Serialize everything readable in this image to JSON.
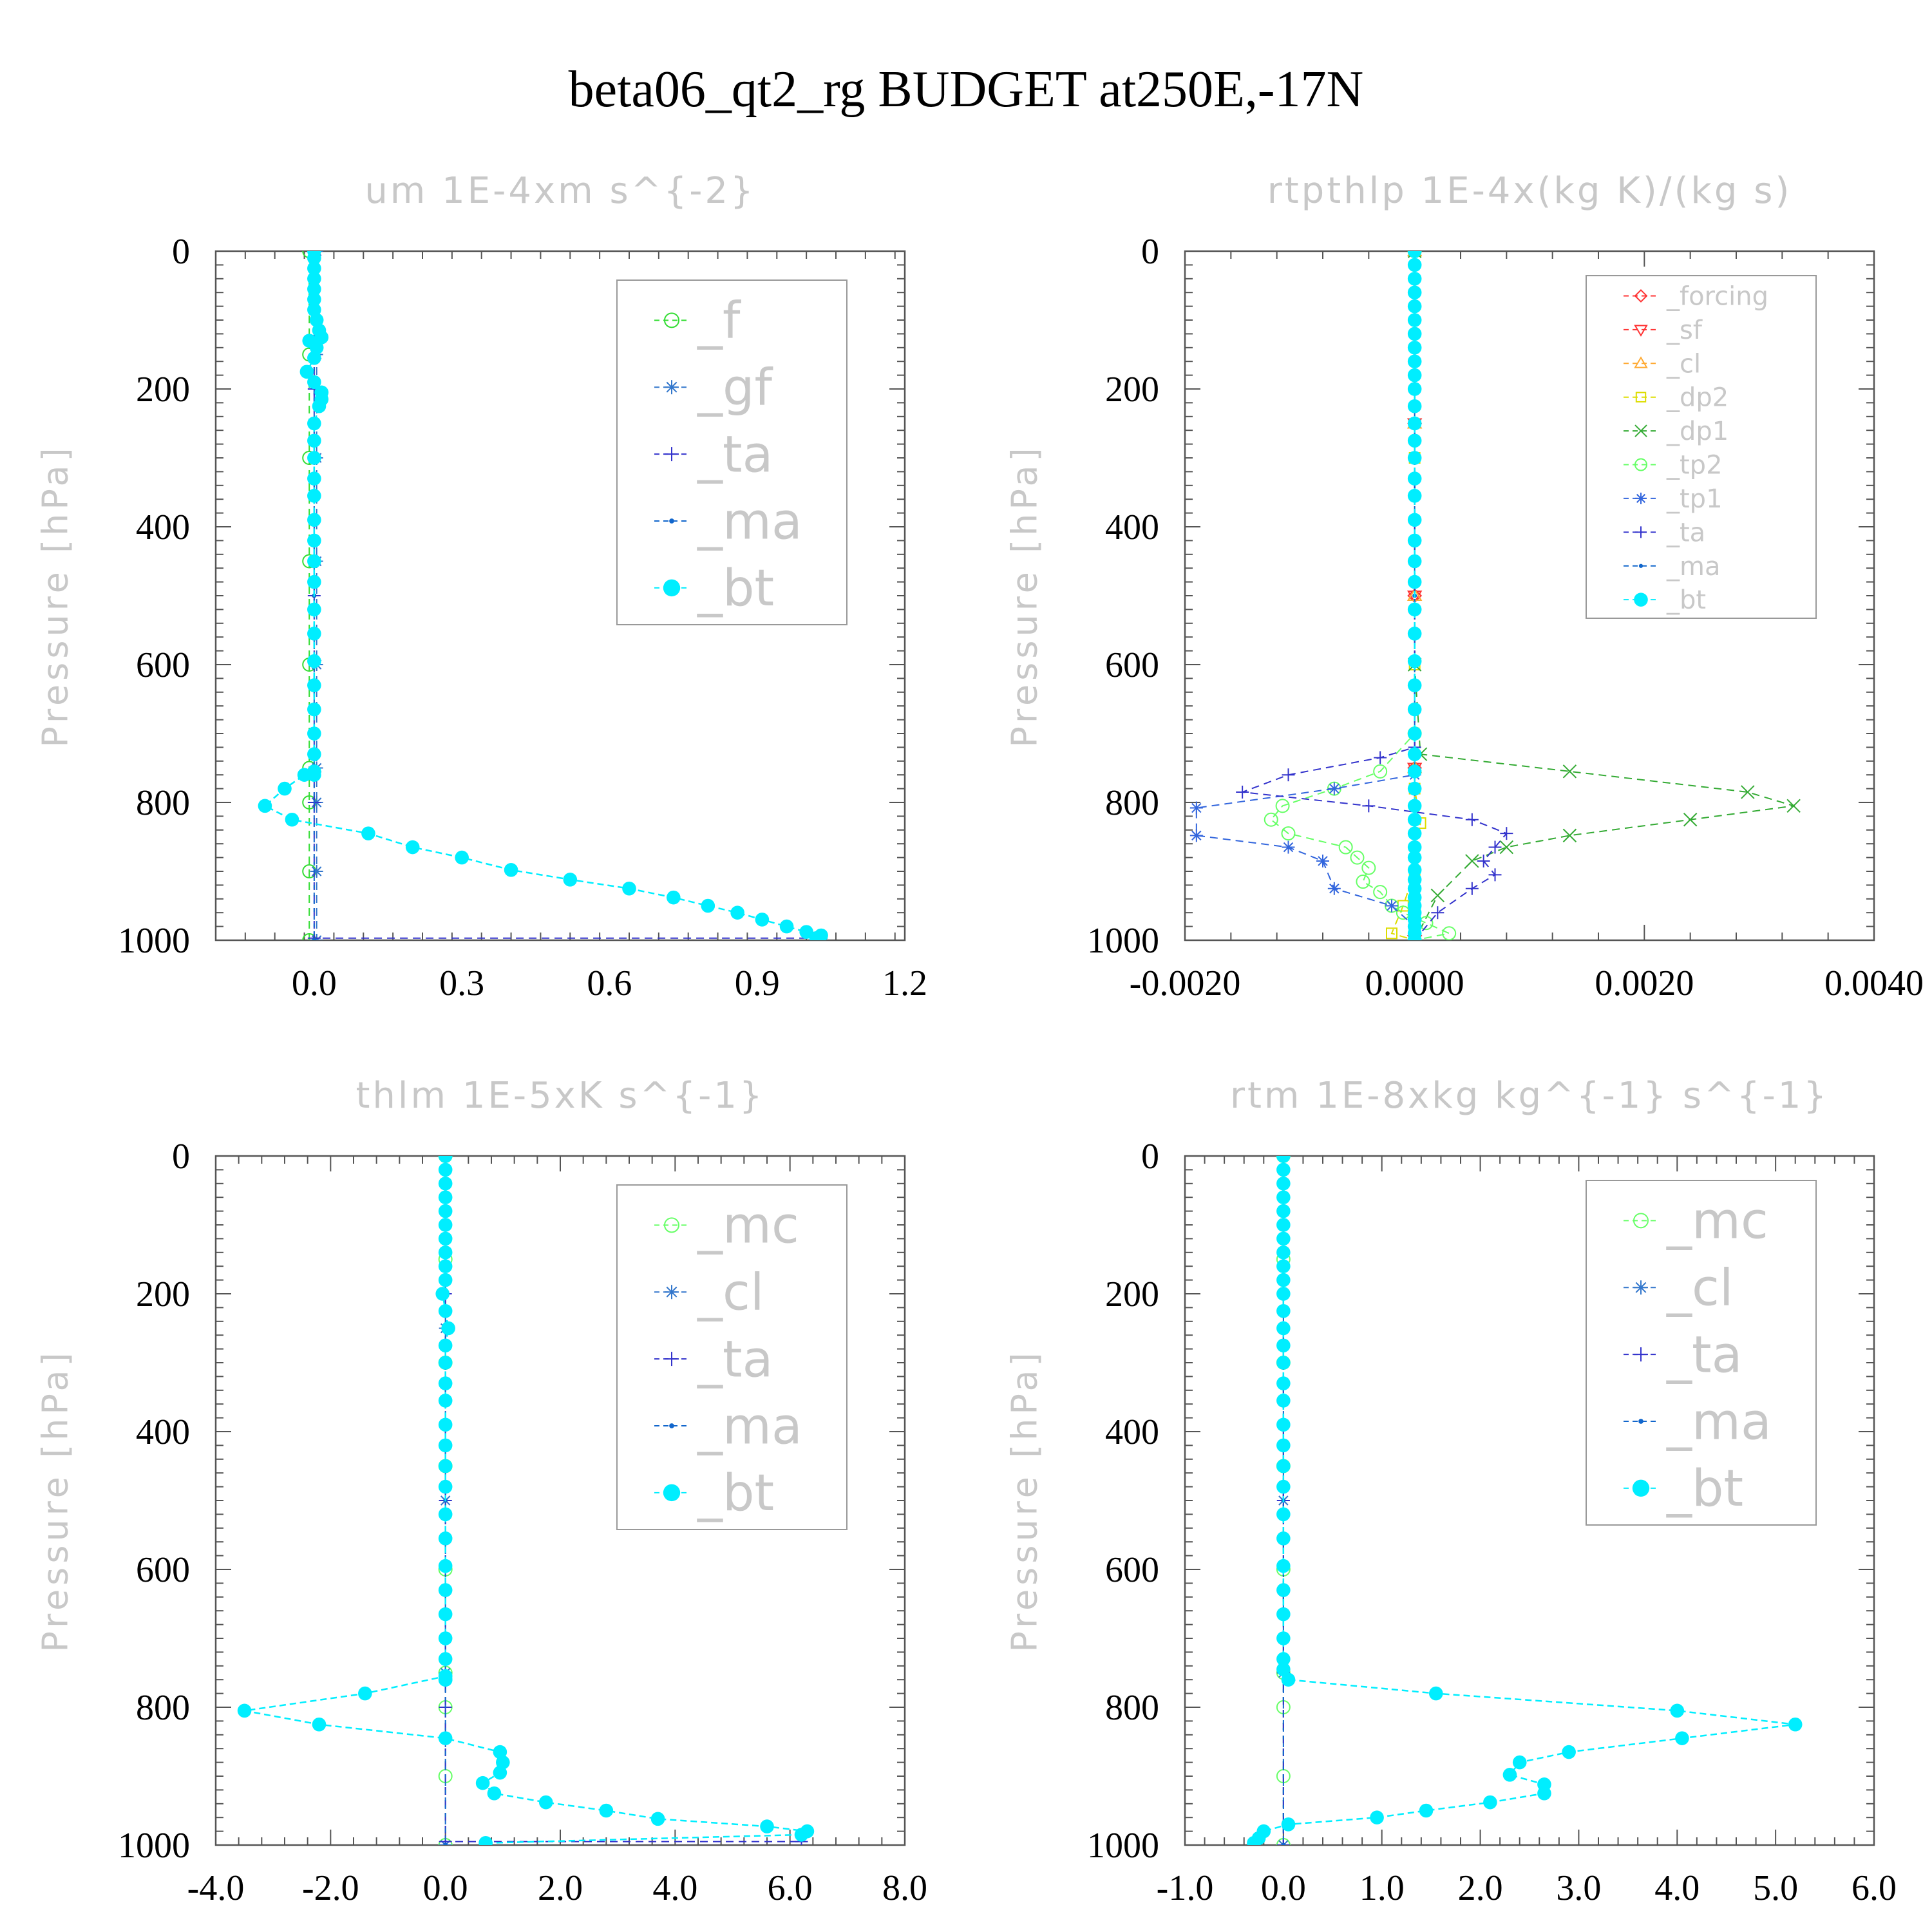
{
  "figure_title": "beta06_qt2_rg  BUDGET at250E,-17N",
  "chart_data": [
    {
      "type": "line",
      "title": "um   1E-4xm s^{-2}",
      "ylabel": "Pressure [hPa]",
      "xlim": [
        -0.2,
        1.2
      ],
      "ylim": [
        1000,
        0
      ],
      "xticks": [
        "0.0",
        "0.3",
        "0.6",
        "0.9",
        "1.2"
      ],
      "xtick_values": [
        0.0,
        0.3,
        0.6,
        0.9,
        1.2
      ],
      "yticks": [
        "0",
        "200",
        "400",
        "600",
        "800",
        "1000"
      ],
      "ytick_values": [
        0,
        200,
        400,
        600,
        800,
        1000
      ],
      "legend_position": "top-right",
      "series": [
        {
          "name": "_f",
          "color": "#33dd33",
          "marker": "circle",
          "x": [
            -0.01,
            -0.01,
            -0.01,
            -0.01,
            -0.01,
            -0.01,
            -0.01,
            -0.01,
            -0.01
          ],
          "y": [
            0,
            150,
            300,
            450,
            600,
            750,
            800,
            900,
            1000
          ]
        },
        {
          "name": "_gf",
          "color": "#3377cc",
          "marker": "star",
          "x": [
            0.005,
            0.005,
            0.005,
            0.005,
            0.005,
            0.005,
            0.005,
            0.005,
            0.005
          ],
          "y": [
            0,
            150,
            300,
            450,
            600,
            750,
            800,
            900,
            1000
          ]
        },
        {
          "name": "_ta",
          "color": "#3333cc",
          "marker": "plus",
          "x": [
            0.0,
            0.0,
            0.0,
            0.0,
            0.0,
            1.03
          ],
          "y": [
            0,
            200,
            500,
            800,
            997,
            997
          ]
        },
        {
          "name": "_ma",
          "color": "#1166cc",
          "marker": "dot",
          "x": [
            0.0,
            0.0,
            0.0,
            0.0,
            0.0
          ],
          "y": [
            0,
            250,
            500,
            750,
            1000
          ]
        },
        {
          "name": "_bt",
          "color": "#00eeff",
          "marker": "filled-circle",
          "x": [
            0.0,
            0.0,
            0.0,
            0.0,
            0.0,
            0.0,
            0.0,
            0.005,
            0.01,
            0.015,
            -0.01,
            0.005,
            0.0,
            -0.015,
            0.0,
            0.015,
            0.015,
            0.01,
            0.0,
            0.0,
            0.0,
            0.0,
            0.0,
            0.0,
            0.0,
            0.0,
            0.0,
            0.0,
            0.0,
            0.0,
            0.0,
            0.0,
            0.0,
            0.0,
            0.0,
            0.0,
            -0.02,
            -0.06,
            -0.1,
            -0.045,
            0.11,
            0.2,
            0.3,
            0.4,
            0.52,
            0.64,
            0.73,
            0.8,
            0.86,
            0.91,
            0.96,
            1.0,
            1.03,
            1.02
          ],
          "y": [
            0,
            10,
            25,
            40,
            55,
            70,
            85,
            100,
            115,
            125,
            130,
            140,
            155,
            175,
            190,
            205,
            215,
            225,
            250,
            275,
            300,
            330,
            355,
            390,
            420,
            450,
            480,
            520,
            555,
            595,
            630,
            665,
            700,
            730,
            755,
            760,
            760,
            780,
            805,
            825,
            845,
            865,
            880,
            898,
            912,
            925,
            938,
            950,
            960,
            970,
            980,
            988,
            993,
            997
          ]
        }
      ]
    },
    {
      "type": "line",
      "title": "rtpthlp   1E-4x(kg K)/(kg s)",
      "ylabel": "Pressure [hPa]",
      "xlim": [
        -0.002,
        0.004
      ],
      "ylim": [
        1000,
        0
      ],
      "xticks": [
        "-0.0020",
        "0.0000",
        "0.0020",
        "0.0040"
      ],
      "xtick_values": [
        -0.002,
        0.0,
        0.002,
        0.004
      ],
      "yticks": [
        "0",
        "200",
        "400",
        "600",
        "800",
        "1000"
      ],
      "ytick_values": [
        0,
        200,
        400,
        600,
        800,
        1000
      ],
      "legend_position": "top-right",
      "series": [
        {
          "name": "_forcing",
          "color": "#ff3333",
          "marker": "diamond",
          "x": [
            0.0,
            0.0,
            0.0,
            0.0,
            0.0
          ],
          "y": [
            0,
            250,
            500,
            750,
            1000
          ]
        },
        {
          "name": "_sf",
          "color": "#ff3333",
          "marker": "triangle-down",
          "x": [
            0.0,
            0.0,
            0.0,
            0.0,
            0.0
          ],
          "y": [
            0,
            250,
            500,
            750,
            1000
          ]
        },
        {
          "name": "_cl",
          "color": "#ffaa33",
          "marker": "triangle-up",
          "x": [
            0.0,
            0.0,
            0.0,
            0.0,
            0.0
          ],
          "y": [
            0,
            250,
            500,
            750,
            1000
          ]
        },
        {
          "name": "_dp2",
          "color": "#dddd00",
          "marker": "square",
          "x": [
            0.0,
            0.0,
            0.0,
            0.0,
            5e-05,
            0.0,
            -0.0001,
            -0.0002,
            0.0
          ],
          "y": [
            0,
            300,
            600,
            780,
            830,
            900,
            950,
            990,
            1000
          ]
        },
        {
          "name": "_dp1",
          "color": "#33aa33",
          "marker": "cross",
          "x": [
            0.0,
            0.0,
            5e-05,
            0.00135,
            0.0029,
            0.0033,
            0.0024,
            0.00135,
            0.0008,
            0.0005,
            0.0002,
            0.0
          ],
          "y": [
            0,
            600,
            730,
            755,
            785,
            805,
            825,
            848,
            865,
            885,
            935,
            1000
          ]
        },
        {
          "name": "_tp2",
          "color": "#66ff66",
          "marker": "circle",
          "x": [
            0.0,
            0.0,
            -0.0003,
            -0.0007,
            -0.00115,
            -0.00125,
            -0.0011,
            -0.0006,
            -0.0005,
            -0.0004,
            -0.00045,
            -0.0003,
            -0.0002,
            -0.0001,
            0.0001,
            0.0003,
            0.0
          ],
          "y": [
            0,
            700,
            755,
            780,
            805,
            825,
            845,
            865,
            880,
            895,
            915,
            930,
            950,
            960,
            975,
            990,
            1000
          ]
        },
        {
          "name": "_tp1",
          "color": "#3366dd",
          "marker": "star",
          "x": [
            0.0,
            0.0,
            -0.0007,
            -0.0019,
            -0.0019,
            -0.0011,
            -0.0008,
            -0.0007,
            -0.0002,
            0.0,
            0.0
          ],
          "y": [
            0,
            760,
            780,
            808,
            848,
            865,
            885,
            925,
            950,
            980,
            1000
          ]
        },
        {
          "name": "_ta",
          "color": "#3333cc",
          "marker": "plus",
          "x": [
            0.0,
            0.0,
            -0.0003,
            -0.0011,
            -0.0015,
            -0.0004,
            0.0005,
            0.0008,
            0.0007,
            0.0006,
            0.0007,
            0.0005,
            0.0002,
            0.0
          ],
          "y": [
            0,
            720,
            735,
            760,
            785,
            805,
            825,
            845,
            865,
            885,
            905,
            925,
            960,
            1000
          ]
        },
        {
          "name": "_ma",
          "color": "#1166cc",
          "marker": "dot",
          "x": [
            0.0,
            0.0,
            0.0,
            0.0,
            0.0
          ],
          "y": [
            0,
            250,
            500,
            750,
            1000
          ]
        },
        {
          "name": "_bt",
          "color": "#00eeff",
          "marker": "filled-circle",
          "x": [
            0.0,
            0.0,
            0.0,
            0.0,
            0.0,
            0.0,
            0.0,
            0.0,
            0.0,
            0.0,
            0.0,
            0.0,
            0.0,
            0.0,
            0.0,
            0.0,
            0.0,
            0.0,
            0.0,
            0.0,
            0.0,
            0.0,
            0.0,
            0.0,
            0.0,
            0.0,
            0.0,
            0.0,
            0.0,
            0.0,
            0.0,
            0.0,
            0.0,
            0.0,
            0.0,
            0.0,
            0.0,
            0.0,
            0.0,
            0.0,
            0.0,
            0.0,
            0.0,
            0.0,
            0.0
          ],
          "y": [
            0,
            20,
            40,
            60,
            80,
            100,
            120,
            140,
            160,
            180,
            200,
            225,
            250,
            275,
            300,
            330,
            355,
            390,
            420,
            450,
            480,
            520,
            555,
            595,
            630,
            665,
            700,
            730,
            755,
            780,
            805,
            825,
            845,
            865,
            880,
            898,
            912,
            925,
            938,
            950,
            960,
            970,
            980,
            990,
            1000
          ]
        }
      ]
    },
    {
      "type": "line",
      "title": "thlm   1E-5xK s^{-1}",
      "ylabel": "Pressure [hPa]",
      "xlim": [
        -4.0,
        8.0
      ],
      "ylim": [
        1000,
        0
      ],
      "xticks": [
        "-4.0",
        "-2.0",
        "0.0",
        "2.0",
        "4.0",
        "6.0",
        "8.0"
      ],
      "xtick_values": [
        -4.0,
        -2.0,
        0.0,
        2.0,
        4.0,
        6.0,
        8.0
      ],
      "yticks": [
        "0",
        "200",
        "400",
        "600",
        "800",
        "1000"
      ],
      "ytick_values": [
        0,
        200,
        400,
        600,
        800,
        1000
      ],
      "legend_position": "top-right",
      "series": [
        {
          "name": "_mc",
          "color": "#66ff66",
          "marker": "circle",
          "x": [
            0.0,
            0.0,
            0.0,
            0.0,
            0.0,
            0.0,
            0.0,
            0.0,
            0.0
          ],
          "y": [
            0,
            150,
            300,
            450,
            600,
            750,
            800,
            900,
            1000
          ]
        },
        {
          "name": "_cl",
          "color": "#3377cc",
          "marker": "star",
          "x": [
            0.0,
            0.0,
            0.0,
            0.0,
            0.0
          ],
          "y": [
            0,
            250,
            500,
            750,
            1000
          ]
        },
        {
          "name": "_ta",
          "color": "#3333cc",
          "marker": "plus",
          "x": [
            0.0,
            0.0,
            0.0,
            0.0,
            0.0,
            6.2
          ],
          "y": [
            0,
            200,
            500,
            800,
            995,
            995
          ]
        },
        {
          "name": "_ma",
          "color": "#1166cc",
          "marker": "dot",
          "x": [
            0.0,
            0.0,
            0.0,
            0.0,
            0.0
          ],
          "y": [
            0,
            250,
            500,
            750,
            1000
          ]
        },
        {
          "name": "_bt",
          "color": "#00eeff",
          "marker": "filled-circle",
          "x": [
            0.0,
            0.0,
            0.0,
            0.0,
            0.0,
            0.0,
            0.0,
            0.0,
            0.0,
            0.0,
            -0.05,
            0.0,
            0.05,
            0.0,
            0.0,
            0.0,
            0.0,
            0.0,
            0.0,
            0.0,
            0.0,
            0.0,
            0.0,
            0.0,
            0.0,
            0.0,
            0.0,
            0.0,
            0.0,
            0.0,
            0.0,
            0.0,
            0.0,
            -1.4,
            -3.5,
            -2.2,
            0.0,
            0.95,
            1.0,
            0.95,
            0.65,
            0.85,
            1.75,
            2.8,
            3.7,
            5.6,
            6.3,
            6.2,
            0.7
          ],
          "y": [
            0,
            20,
            40,
            60,
            80,
            100,
            120,
            140,
            160,
            180,
            200,
            225,
            250,
            275,
            300,
            330,
            355,
            390,
            420,
            450,
            480,
            520,
            555,
            595,
            630,
            665,
            700,
            730,
            755,
            760,
            760,
            760,
            755,
            780,
            805,
            825,
            845,
            865,
            880,
            895,
            910,
            925,
            938,
            950,
            962,
            973,
            980,
            985,
            997
          ]
        }
      ]
    },
    {
      "type": "line",
      "title": "rtm   1E-8xkg kg^{-1} s^{-1}",
      "ylabel": "Pressure [hPa]",
      "xlim": [
        -1.0,
        6.0
      ],
      "ylim": [
        1000,
        0
      ],
      "xticks": [
        "-1.0",
        "0.0",
        "1.0",
        "2.0",
        "3.0",
        "4.0",
        "5.0",
        "6.0"
      ],
      "xtick_values": [
        -1.0,
        0.0,
        1.0,
        2.0,
        3.0,
        4.0,
        5.0,
        6.0
      ],
      "yticks": [
        "0",
        "200",
        "400",
        "600",
        "800",
        "1000"
      ],
      "ytick_values": [
        0,
        200,
        400,
        600,
        800,
        1000
      ],
      "legend_position": "top-right",
      "series": [
        {
          "name": "_mc",
          "color": "#66ff66",
          "marker": "circle",
          "x": [
            0.0,
            0.0,
            0.0,
            0.0,
            0.0,
            0.0,
            0.0,
            0.0,
            0.0
          ],
          "y": [
            0,
            150,
            300,
            450,
            600,
            750,
            800,
            900,
            1000
          ]
        },
        {
          "name": "_cl",
          "color": "#3377cc",
          "marker": "star",
          "x": [
            0.0,
            0.0,
            0.0,
            0.0,
            0.0
          ],
          "y": [
            0,
            250,
            500,
            750,
            1000
          ]
        },
        {
          "name": "_ta",
          "color": "#3333cc",
          "marker": "plus",
          "x": [
            0.0,
            0.0,
            0.0,
            0.0,
            0.0
          ],
          "y": [
            0,
            250,
            500,
            750,
            1000
          ]
        },
        {
          "name": "_ma",
          "color": "#1166cc",
          "marker": "dot",
          "x": [
            0.0,
            0.0,
            0.0,
            0.0,
            0.0
          ],
          "y": [
            0,
            250,
            500,
            750,
            1000
          ]
        },
        {
          "name": "_bt",
          "color": "#00eeff",
          "marker": "filled-circle",
          "x": [
            0.0,
            0.0,
            0.0,
            0.0,
            0.0,
            0.0,
            0.0,
            0.0,
            0.0,
            0.0,
            0.0,
            0.0,
            0.0,
            0.0,
            0.0,
            0.0,
            0.0,
            0.0,
            0.0,
            0.0,
            0.0,
            0.0,
            0.0,
            0.0,
            0.0,
            0.0,
            0.0,
            0.0,
            0.0,
            0.05,
            1.55,
            4.0,
            5.2,
            4.05,
            2.9,
            2.4,
            2.3,
            2.65,
            2.65,
            2.1,
            1.45,
            0.95,
            0.05,
            -0.2,
            -0.25,
            -0.3
          ],
          "y": [
            0,
            20,
            40,
            60,
            80,
            100,
            120,
            140,
            160,
            180,
            200,
            225,
            250,
            275,
            300,
            330,
            355,
            390,
            420,
            450,
            480,
            520,
            555,
            595,
            630,
            665,
            700,
            730,
            745,
            760,
            780,
            805,
            825,
            845,
            865,
            880,
            898,
            912,
            925,
            938,
            950,
            960,
            970,
            980,
            990,
            997
          ]
        }
      ]
    }
  ]
}
